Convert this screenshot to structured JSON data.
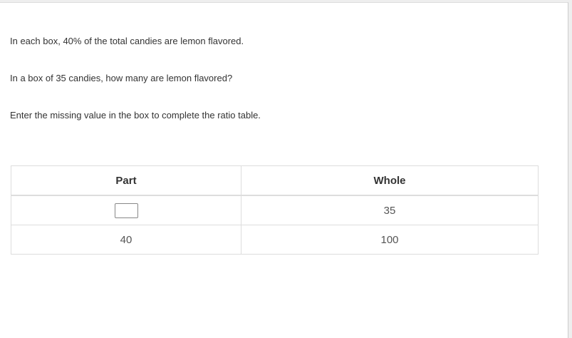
{
  "question": {
    "line1": "In each box, 40% of the total candies are lemon flavored.",
    "line2": "In a box of 35 candies, how many are lemon flavored?",
    "line3": "Enter the missing value in the box to complete the ratio table."
  },
  "table": {
    "headers": [
      "Part",
      "Whole"
    ],
    "rows": [
      {
        "part": "",
        "whole": "35"
      },
      {
        "part": "40",
        "whole": "100"
      }
    ]
  }
}
